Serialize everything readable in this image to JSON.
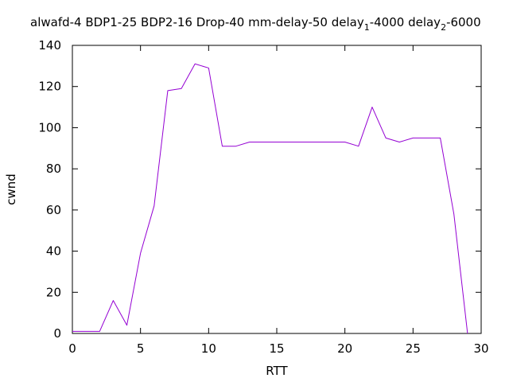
{
  "chart_data": {
    "type": "line",
    "title": {
      "part1": "alwafd-4 BDP1-25 BDP2-16 Drop-40 mm-delay-50 delay",
      "sub1": "1",
      "part2": "-4000 delay",
      "sub2": "2",
      "part3": "-6000"
    },
    "xlabel": "RTT",
    "ylabel": "cwnd",
    "xlim": [
      0,
      30
    ],
    "ylim": [
      0,
      140
    ],
    "x_ticks": [
      "0",
      "5",
      "10",
      "15",
      "20",
      "25",
      "30"
    ],
    "y_ticks": [
      "0",
      "20",
      "40",
      "60",
      "80",
      "100",
      "120",
      "140"
    ],
    "grid": false,
    "series": [
      {
        "color": "#9400d3",
        "x": [
          0,
          1,
          2,
          3,
          4,
          5,
          6,
          7,
          8,
          9,
          10,
          11,
          12,
          13,
          14,
          15,
          16,
          17,
          18,
          19,
          20,
          21,
          22,
          23,
          24,
          25,
          26,
          27,
          28,
          29
        ],
        "y": [
          1,
          1,
          1,
          16,
          4,
          39,
          62,
          118,
          119,
          131,
          129,
          91,
          91,
          93,
          93,
          93,
          93,
          93,
          93,
          93,
          93,
          91,
          110,
          95,
          93,
          95,
          95,
          95,
          58,
          0
        ]
      }
    ]
  }
}
